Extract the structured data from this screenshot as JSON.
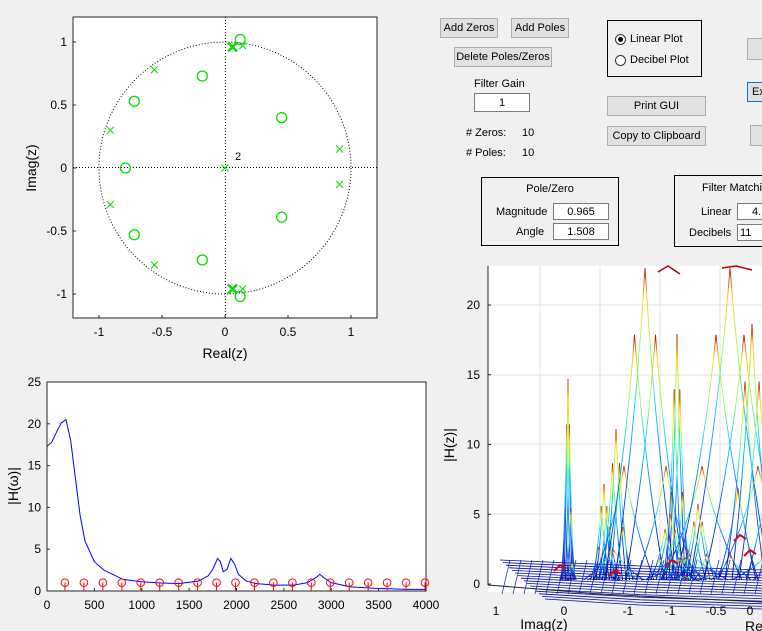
{
  "controls": {
    "add_zeros": "Add Zeros",
    "add_poles": "Add Poles",
    "delete": "Delete Poles/Zeros",
    "filter_gain_label": "Filter Gain",
    "filter_gain_value": "1",
    "zeros_label": "# Zeros:",
    "zeros_count": "10",
    "poles_label": "# Poles:",
    "poles_count": "10",
    "print_gui": "Print GUI",
    "copy_clipboard": "Copy to Clipboard",
    "partial_button": "Ex"
  },
  "plot_type": {
    "linear": "Linear Plot",
    "decibel": "Decibel Plot",
    "selected": "linear"
  },
  "pole_zero_panel": {
    "title": "Pole/Zero",
    "magnitude_label": "Magnitude",
    "magnitude_value": "0.965",
    "angle_label": "Angle",
    "angle_value": "1.508"
  },
  "filter_matching_panel": {
    "title": "Filter Matching",
    "linear_label": "Linear",
    "linear_value": "4.",
    "decibels_label": "Decibels",
    "decibels_value": "11"
  },
  "colors": {
    "zeros_poles": "#00e000",
    "response_line": "#0000ff",
    "samples": "#ff0000"
  },
  "chart_data": [
    {
      "type": "scatter",
      "xlabel": "Real(z)",
      "ylabel": "Imag(z)",
      "xlim": [
        -1.2,
        1.2
      ],
      "ylim": [
        -1.2,
        1.2
      ],
      "xticks": [
        "-1",
        "-0.5",
        "0",
        "0.5",
        "1"
      ],
      "yticks": [
        "1",
        "0.5",
        "0",
        "-0.5",
        "-1"
      ],
      "unit_circle": true,
      "annotation": "2",
      "zeros": [
        [
          0.12,
          1.02
        ],
        [
          -0.18,
          0.73
        ],
        [
          -0.72,
          0.53
        ],
        [
          -0.79,
          0.0
        ],
        [
          -0.72,
          -0.53
        ],
        [
          -0.18,
          -0.73
        ],
        [
          0.12,
          -1.02
        ],
        [
          0.45,
          0.4
        ],
        [
          0.45,
          -0.39
        ]
      ],
      "poles": [
        [
          0.14,
          0.97
        ],
        [
          -0.56,
          0.78
        ],
        [
          -0.91,
          0.3
        ],
        [
          0.91,
          0.15
        ],
        [
          0.91,
          -0.13
        ],
        [
          -0.91,
          -0.29
        ],
        [
          -0.56,
          -0.77
        ],
        [
          0.14,
          -0.96
        ],
        [
          0.0,
          0.0
        ]
      ],
      "double_poles": [
        [
          0.06,
          0.96
        ],
        [
          0.06,
          -0.96
        ]
      ]
    },
    {
      "type": "line",
      "ylabel": "|H(ω)|",
      "xlim": [
        0,
        4000
      ],
      "ylim": [
        0,
        25
      ],
      "xticks": [
        "0",
        "500",
        "1000",
        "1500",
        "2000",
        "2500",
        "3000",
        "3500",
        "4000"
      ],
      "yticks": [
        "25",
        "20",
        "15",
        "10",
        "5",
        "0"
      ],
      "series": [
        {
          "x": [
            0,
            50,
            100,
            150,
            200,
            250,
            300,
            350,
            400,
            500,
            600,
            800,
            1000,
            1200,
            1400,
            1600,
            1700,
            1750,
            1800,
            1830,
            1860,
            1900,
            1940,
            1980,
            2020,
            2100,
            2200,
            2400,
            2600,
            2750,
            2850,
            2880,
            2920,
            3000,
            3200,
            3500,
            3800,
            4000
          ],
          "y": [
            17.3,
            17.8,
            19,
            20.1,
            20.5,
            18,
            13.5,
            9,
            6,
            3.5,
            2.5,
            1.4,
            1.1,
            0.95,
            0.9,
            1.2,
            1.8,
            2.6,
            3.9,
            3.5,
            2.3,
            2.6,
            3.9,
            3.2,
            2.0,
            1.2,
            0.9,
            0.7,
            0.7,
            1.0,
            1.7,
            2.0,
            1.6,
            1.0,
            0.5,
            0.3,
            0.2,
            0.2
          ]
        }
      ],
      "samples": {
        "x": [
          200,
          400,
          600,
          800,
          1000,
          1200,
          1400,
          1600,
          1800,
          2000,
          2200,
          2400,
          2600,
          2800,
          3000,
          3200,
          3400,
          3600,
          3800,
          4000
        ],
        "y": 1
      }
    },
    {
      "type": "surface",
      "zlabel": "|H(z)|",
      "xlabel": "Imag(z)",
      "x2label": "Re",
      "zticks": [
        "20",
        "15",
        "10",
        "5",
        "0"
      ],
      "xticks": [
        "1",
        "0",
        "-1",
        "-1",
        "-0.5",
        "0"
      ]
    }
  ]
}
